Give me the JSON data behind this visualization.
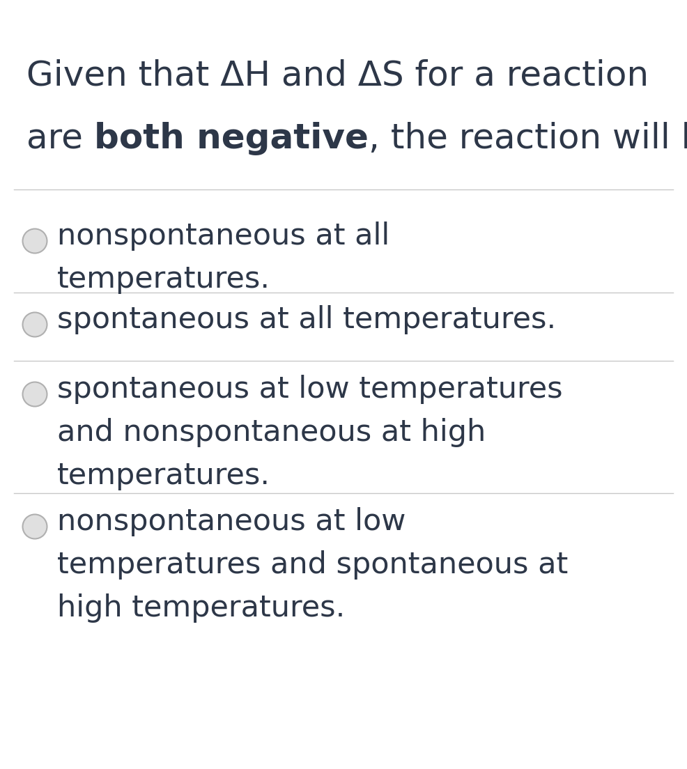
{
  "background_color": "#ffffff",
  "text_color": "#2d3748",
  "title_line1": "Given that ΔH and ΔS for a reaction",
  "title_line2_part1": "are ",
  "title_line2_bold": "both negative",
  "title_line2_part2": ", the reaction will be",
  "options": [
    "nonspontaneous at all\ntemperatures.",
    "spontaneous at all temperatures.",
    "spontaneous at low temperatures\nand nonspontaneous at high\ntemperatures.",
    "nonspontaneous at low\ntemperatures and spontaneous at\nhigh temperatures."
  ],
  "divider_color": "#c8c8c8",
  "circle_edge_color": "#b0b0b0",
  "circle_face_color": "#e0e0e0",
  "font_size_title": 36,
  "font_size_options": 31,
  "fig_width": 9.86,
  "fig_height": 11.04
}
